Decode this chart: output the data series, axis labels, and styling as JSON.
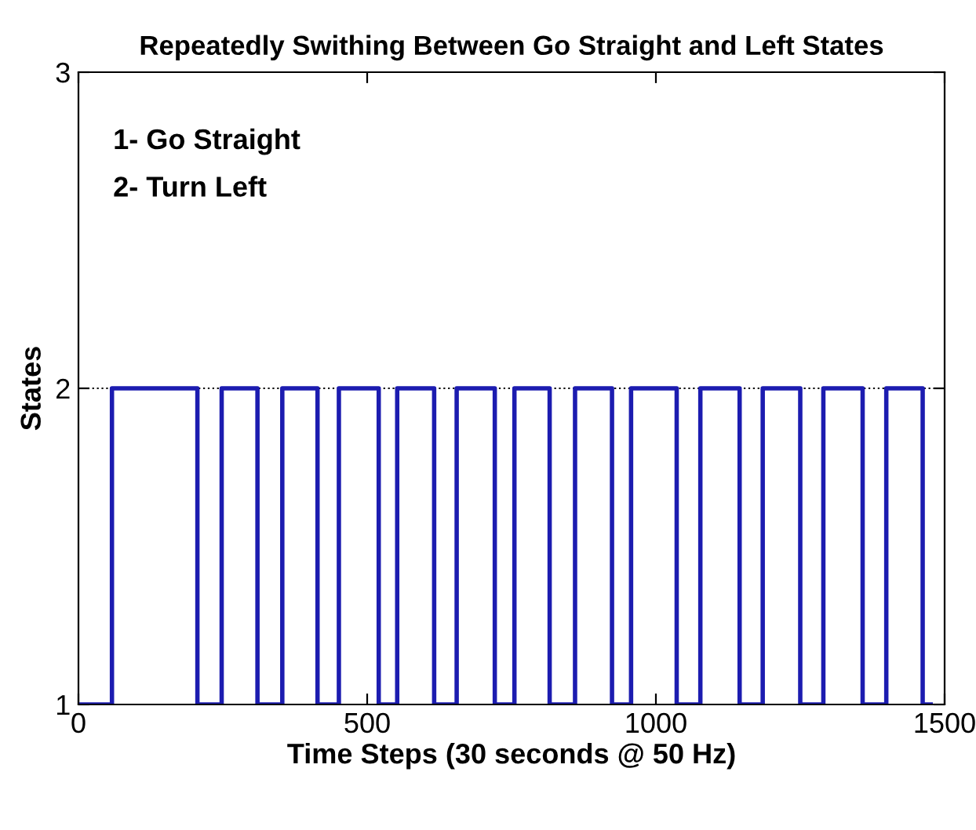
{
  "chart_data": {
    "type": "step",
    "title": "Repeatedly Swithing Between Go Straight and Left States",
    "xlabel": "Time Steps (30 seconds @ 50 Hz)",
    "ylabel": "States",
    "x": [
      0,
      58,
      206,
      248,
      310,
      353,
      414,
      451,
      520,
      552,
      616,
      655,
      721,
      755,
      816,
      860,
      924,
      957,
      1036,
      1077,
      1145,
      1185,
      1250,
      1290,
      1358,
      1399,
      1462,
      1476
    ],
    "series": [
      {
        "color": "#1c1cb0",
        "values": [
          1,
          2,
          1,
          2,
          1,
          2,
          1,
          2,
          1,
          2,
          1,
          2,
          1,
          2,
          1,
          2,
          1,
          2,
          1,
          2,
          1,
          2,
          1,
          2,
          1,
          2,
          1,
          1
        ]
      }
    ],
    "xlim": [
      0,
      1500
    ],
    "ylim": [
      1,
      3
    ],
    "xticks": [
      0,
      500,
      1000,
      1500
    ],
    "yticks": [
      1,
      2,
      3
    ],
    "ref_lines": [
      {
        "axis": "y",
        "value": 2,
        "label": null,
        "color": "#000000",
        "line_style": "dotted"
      }
    ],
    "annotations": [
      "1- Go Straight",
      "2- Turn Left"
    ],
    "grid": false,
    "marker": "none",
    "line_style": "solid"
  }
}
